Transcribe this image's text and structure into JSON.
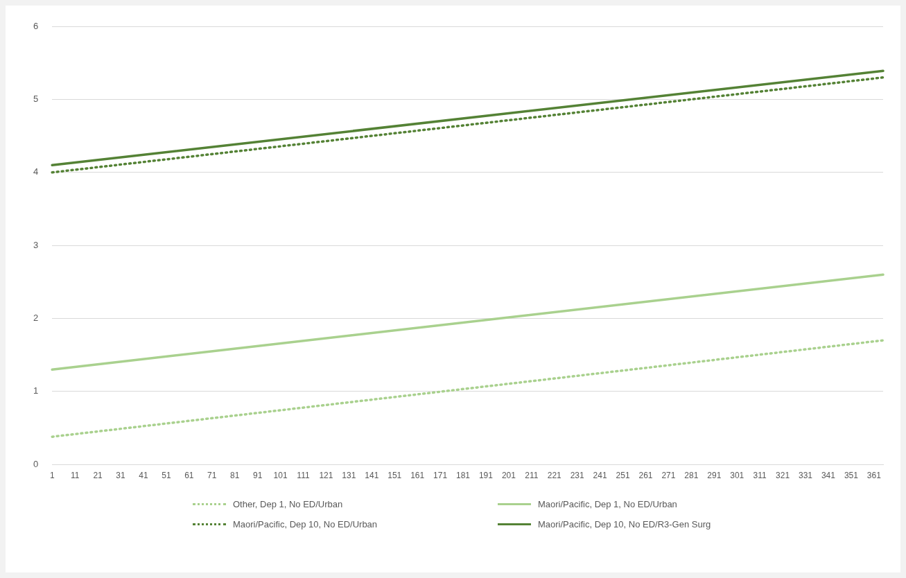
{
  "chart_data": {
    "type": "line",
    "x": [
      1,
      365
    ],
    "xlim": [
      1,
      365
    ],
    "xticks": [
      1,
      11,
      21,
      31,
      41,
      51,
      61,
      71,
      81,
      91,
      101,
      111,
      121,
      131,
      141,
      151,
      161,
      171,
      181,
      191,
      201,
      211,
      221,
      231,
      241,
      251,
      261,
      271,
      281,
      291,
      301,
      311,
      321,
      331,
      341,
      351,
      361
    ],
    "ylim": [
      0,
      6
    ],
    "yticks": [
      0,
      1,
      2,
      3,
      4,
      5,
      6
    ],
    "grid": "y",
    "legend": "bottom",
    "marker": "none",
    "series": [
      {
        "name": "Other, Dep 1, No ED/Urban",
        "color": "#a9d18e",
        "line_style": "dotted",
        "values": [
          0.38,
          1.7
        ]
      },
      {
        "name": "Maori/Pacific, Dep 1, No ED/Urban",
        "color": "#a9d18e",
        "line_style": "solid",
        "values": [
          1.3,
          2.6
        ]
      },
      {
        "name": "Maori/Pacific, Dep 10, No ED/Urban",
        "color": "#548235",
        "line_style": "dotted",
        "values": [
          4.0,
          5.3
        ]
      },
      {
        "name": "Maori/Pacific, Dep 10, No ED/R3-Gen Surg",
        "color": "#548235",
        "line_style": "solid",
        "values": [
          4.1,
          5.39
        ]
      }
    ]
  }
}
